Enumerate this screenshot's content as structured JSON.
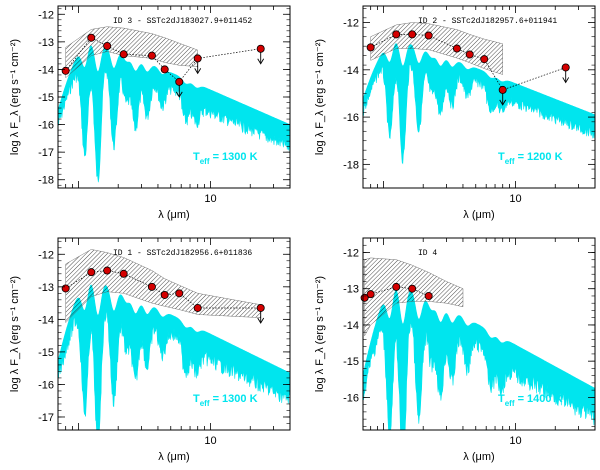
{
  "figure": {
    "xlabel": "λ  (μm)",
    "ylabel": "log λ F_λ  (erg s⁻¹ cm⁻²)"
  },
  "colors": {
    "model_spectrum": "#00e5ee",
    "data_points": "#d40000",
    "hatch": "#000000",
    "axes": "#000000"
  },
  "chart_data": [
    {
      "type": "scatter",
      "title": "ID 3 - SSTc2dJ183027.9+011452",
      "teff_label": "T_eff = 1300 K",
      "x_scale": "log",
      "xlim": [
        0.7,
        40
      ],
      "ylim": [
        -18.3,
        -11.7
      ],
      "x_ticks": [
        1,
        10
      ],
      "x_tick_labels": [
        "",
        "10"
      ],
      "y_ticks": [
        -18,
        -17,
        -16,
        -15,
        -14,
        -13,
        -12
      ],
      "y_tick_labels": [
        "-18",
        "-17",
        "-16",
        "-15",
        "-14",
        "-13",
        "-12"
      ],
      "series": [
        {
          "x": [
            0.8,
            1.25,
            1.65,
            2.2,
            3.6,
            4.5,
            5.8,
            8.0,
            24.0
          ],
          "y": [
            -14.05,
            -12.85,
            -13.15,
            -13.45,
            -13.5,
            -14.0,
            -14.45,
            -13.6,
            -13.25
          ],
          "upper_limit": [
            false,
            false,
            false,
            false,
            false,
            false,
            true,
            true,
            true
          ]
        }
      ],
      "hatch_band": {
        "x": [
          0.8,
          1.25,
          1.65,
          2.2,
          3.6,
          4.5,
          5.8,
          8.0
        ],
        "upper": [
          -13.2,
          -12.55,
          -12.45,
          -12.5,
          -12.7,
          -12.85,
          -13.05,
          -13.3
        ],
        "lower": [
          -14.3,
          -13.5,
          -13.35,
          -13.5,
          -13.6,
          -13.75,
          -13.85,
          -13.9
        ]
      },
      "model": {
        "peak_x": 1.25,
        "peak_y": -12.85,
        "tail_y": -16.0,
        "scale": 1.0
      }
    },
    {
      "type": "scatter",
      "title": "ID 2 - SSTc2dJ182957.6+011941",
      "teff_label": "T_eff = 1200 K",
      "x_scale": "log",
      "xlim": [
        0.7,
        40
      ],
      "ylim": [
        -19.0,
        -11.3
      ],
      "x_ticks": [
        1,
        10
      ],
      "x_tick_labels": [
        "",
        "10"
      ],
      "y_ticks": [
        -18,
        -16,
        -14,
        -12
      ],
      "y_tick_labels": [
        "-18",
        "-16",
        "-14",
        "-12"
      ],
      "series": [
        {
          "x": [
            0.8,
            1.25,
            1.65,
            2.2,
            3.6,
            4.5,
            5.8,
            8.0,
            24.0
          ],
          "y": [
            -13.05,
            -12.5,
            -12.5,
            -12.55,
            -13.1,
            -13.35,
            -13.55,
            -14.85,
            -13.9
          ],
          "upper_limit": [
            false,
            false,
            false,
            false,
            false,
            false,
            false,
            true,
            true
          ]
        }
      ],
      "hatch_band": {
        "x": [
          0.8,
          1.25,
          1.65,
          2.2,
          3.6,
          4.5,
          5.8,
          8.0
        ],
        "upper": [
          -12.6,
          -12.1,
          -12.0,
          -12.05,
          -12.3,
          -12.5,
          -12.7,
          -12.9
        ],
        "lower": [
          -13.6,
          -13.1,
          -13.1,
          -13.15,
          -13.5,
          -13.7,
          -13.95,
          -14.2
        ]
      },
      "model": {
        "peak_x": 1.25,
        "peak_y": -12.6,
        "tail_y": -15.9,
        "scale": 1.0
      }
    },
    {
      "type": "scatter",
      "title": "ID 1 - SSTc2dJ182956.6+011836",
      "teff_label": "T_eff = 1300 K",
      "x_scale": "log",
      "xlim": [
        0.7,
        40
      ],
      "ylim": [
        -17.4,
        -11.5
      ],
      "x_ticks": [
        1,
        10
      ],
      "x_tick_labels": [
        "",
        "10"
      ],
      "y_ticks": [
        -17,
        -16,
        -15,
        -14,
        -13,
        -12
      ],
      "y_tick_labels": [
        "-17",
        "-16",
        "-15",
        "-14",
        "-13",
        "-12"
      ],
      "series": [
        {
          "x": [
            0.8,
            1.25,
            1.65,
            2.2,
            3.6,
            4.5,
            5.8,
            8.0,
            24.0
          ],
          "y": [
            -13.05,
            -12.55,
            -12.5,
            -12.6,
            -13.0,
            -13.25,
            -13.2,
            -13.65,
            -13.65
          ],
          "upper_limit": [
            false,
            false,
            false,
            false,
            false,
            false,
            false,
            false,
            true
          ]
        }
      ],
      "hatch_band": {
        "x": [
          0.8,
          1.25,
          1.65,
          2.2,
          3.6,
          4.5,
          5.8,
          8.0,
          24.0
        ],
        "upper": [
          -12.3,
          -11.85,
          -11.95,
          -12.1,
          -12.5,
          -12.75,
          -12.95,
          -13.2,
          -13.55
        ],
        "lower": [
          -14.1,
          -13.3,
          -13.15,
          -13.2,
          -13.5,
          -13.6,
          -13.7,
          -13.85,
          -13.95
        ]
      },
      "model": {
        "peak_x": 1.25,
        "peak_y": -12.65,
        "tail_y": -15.65,
        "scale": 1.0
      }
    },
    {
      "type": "scatter",
      "title": "ID 4",
      "teff_label": "T_eff = 1400 K",
      "x_scale": "log",
      "xlim": [
        0.7,
        40
      ],
      "ylim": [
        -16.9,
        -11.6
      ],
      "x_ticks": [
        1,
        10
      ],
      "x_tick_labels": [
        "",
        "10"
      ],
      "y_ticks": [
        -16,
        -15,
        -14,
        -13,
        -12
      ],
      "y_tick_labels": [
        "-16",
        "-15",
        "-14",
        "-13",
        "-12"
      ],
      "series": [
        {
          "x": [
            0.72,
            0.8,
            1.25,
            1.65,
            2.2
          ],
          "y": [
            -13.25,
            -13.15,
            -12.95,
            -13.0,
            -13.2
          ],
          "upper_limit": [
            false,
            false,
            false,
            false,
            false
          ]
        }
      ],
      "hatch_band": {
        "x": [
          0.72,
          0.8,
          1.25,
          1.65,
          2.2,
          3.0,
          4.0
        ],
        "upper": [
          -12.2,
          -12.15,
          -12.2,
          -12.35,
          -12.55,
          -12.8,
          -13.0
        ],
        "lower": [
          -14.3,
          -14.0,
          -13.4,
          -13.35,
          -13.35,
          -13.4,
          -13.5
        ]
      },
      "model": {
        "peak_x": 1.25,
        "peak_y": -12.75,
        "tail_y": -15.75,
        "scale": 1.0
      }
    }
  ]
}
